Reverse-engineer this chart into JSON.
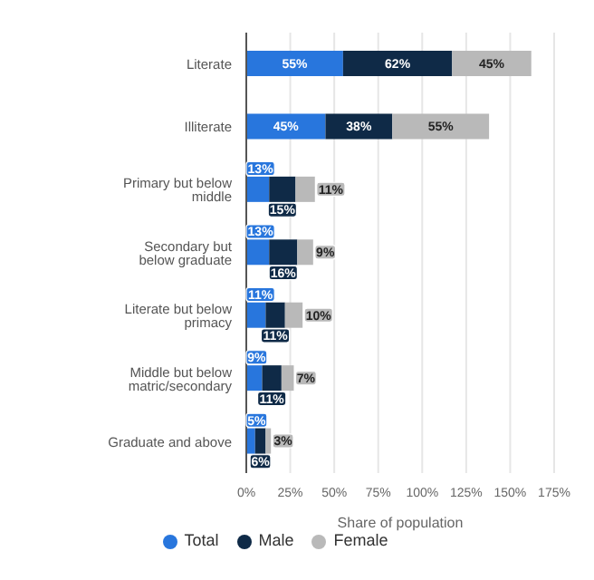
{
  "chart_data": {
    "type": "bar",
    "orientation": "horizontal",
    "stacked": true,
    "xlabel": "Share of population",
    "categories": [
      "Literate",
      "Illiterate",
      "Primary but below middle",
      "Secondary but below graduate",
      "Literate but below primacy",
      "Middle but below matric/secondary",
      "Graduate and above"
    ],
    "series": [
      {
        "name": "Total",
        "color": "#2876dd",
        "values": [
          55,
          45,
          13,
          13,
          11,
          9,
          5
        ],
        "value_labels": [
          "55%",
          "45%",
          "13%",
          "13%",
          "11%",
          "9%",
          "5%"
        ]
      },
      {
        "name": "Male",
        "color": "#0f2a47",
        "values": [
          62,
          38,
          15,
          16,
          11,
          11,
          6
        ],
        "value_labels": [
          "62%",
          "38%",
          "15%",
          "16%",
          "11%",
          "11%",
          "6%"
        ]
      },
      {
        "name": "Female",
        "color": "#b9b9b9",
        "values": [
          45,
          55,
          11,
          9,
          10,
          7,
          3
        ],
        "value_labels": [
          "45%",
          "55%",
          "11%",
          "9%",
          "10%",
          "7%",
          "3%"
        ]
      }
    ],
    "xlim": [
      0,
      175
    ],
    "xticks": [
      {
        "value": 0,
        "label": "0%"
      },
      {
        "value": 25,
        "label": "25%"
      },
      {
        "value": 50,
        "label": "50%"
      },
      {
        "value": 75,
        "label": "75%"
      },
      {
        "value": 100,
        "label": "100%"
      },
      {
        "value": 125,
        "label": "125%"
      },
      {
        "value": 150,
        "label": "150%"
      },
      {
        "value": 175,
        "label": "175%"
      }
    ],
    "grid": "x",
    "legend": "bottom"
  }
}
